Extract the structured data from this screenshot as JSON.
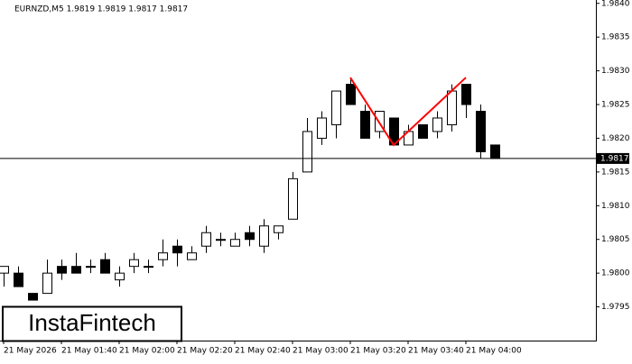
{
  "chart_data": {
    "type": "candlestick",
    "title": "EURNZD,M5  1.9819 1.9819 1.9817 1.9817",
    "watermark": "InstaFintech",
    "categories": [
      "21 May 2026",
      null,
      null,
      null,
      "21 May 01:40",
      null,
      null,
      null,
      "21 May 02:00",
      null,
      null,
      null,
      "21 May 02:20",
      null,
      null,
      null,
      "21 May 02:40",
      null,
      null,
      null,
      "21 May 03:00",
      null,
      null,
      null,
      "21 May 03:20",
      null,
      null,
      null,
      "21 May 03:40",
      null,
      null,
      null,
      "21 May 04:00",
      null,
      null
    ],
    "open": [
      1.98,
      1.98,
      1.9797,
      1.9797,
      1.9801,
      1.9801,
      1.9801,
      1.9802,
      1.9799,
      1.9801,
      1.9801,
      1.9802,
      1.9804,
      1.9802,
      1.9804,
      1.9805,
      1.9804,
      1.9806,
      1.9804,
      1.9806,
      1.9808,
      1.9815,
      1.982,
      1.9822,
      1.9828,
      1.9824,
      1.9821,
      1.9823,
      1.9819,
      1.9822,
      1.9821,
      1.9822,
      1.9828,
      1.9824,
      1.9819
    ],
    "high": [
      1.9801,
      1.9801,
      1.9797,
      1.9802,
      1.9802,
      1.9803,
      1.9802,
      1.9803,
      1.9801,
      1.9803,
      1.9802,
      1.9805,
      1.9805,
      1.9804,
      1.9807,
      1.9806,
      1.9806,
      1.9807,
      1.9808,
      1.9807,
      1.9815,
      1.9823,
      1.9824,
      1.9827,
      1.9829,
      1.9825,
      1.9824,
      1.9823,
      1.9822,
      1.9822,
      1.9824,
      1.9828,
      1.9828,
      1.9825,
      1.9819
    ],
    "low": [
      1.9798,
      1.9798,
      1.9796,
      1.9797,
      1.9799,
      1.98,
      1.98,
      1.98,
      1.9798,
      1.98,
      1.98,
      1.9801,
      1.9801,
      1.9802,
      1.9803,
      1.9804,
      1.9804,
      1.9804,
      1.9803,
      1.9805,
      1.9808,
      1.9815,
      1.9819,
      1.982,
      1.9825,
      1.982,
      1.982,
      1.9819,
      1.9819,
      1.982,
      1.982,
      1.9821,
      1.9823,
      1.9817,
      1.9817
    ],
    "close": [
      1.9801,
      1.9798,
      1.9796,
      1.98,
      1.98,
      1.98,
      1.9801,
      1.98,
      1.98,
      1.9802,
      1.9801,
      1.9803,
      1.9803,
      1.9803,
      1.9806,
      1.9805,
      1.9805,
      1.9805,
      1.9807,
      1.9807,
      1.9814,
      1.9821,
      1.9823,
      1.9827,
      1.9825,
      1.982,
      1.9824,
      1.9819,
      1.9821,
      1.982,
      1.9823,
      1.9827,
      1.9825,
      1.9818,
      1.9817
    ],
    "up_color": "#ffffff",
    "down_color": "#000000",
    "last_price": 1.9817,
    "pattern": {
      "color": "#ff0000",
      "x": [
        24,
        27,
        32
      ],
      "values": [
        1.9829,
        1.9819,
        1.9829
      ]
    },
    "ylim": [
      1.979,
      1.98405
    ],
    "yticks": [
      1.9795,
      {
        "value": 1.98,
        "label": "1.9800"
      },
      1.9805,
      {
        "value": 1.981,
        "label": "1.9810"
      },
      1.9815,
      {
        "value": 1.982,
        "label": "1.9820"
      },
      1.9825,
      {
        "value": 1.983,
        "label": "1.9830"
      },
      1.9835,
      {
        "value": 1.984,
        "label": "1.9840"
      }
    ]
  }
}
